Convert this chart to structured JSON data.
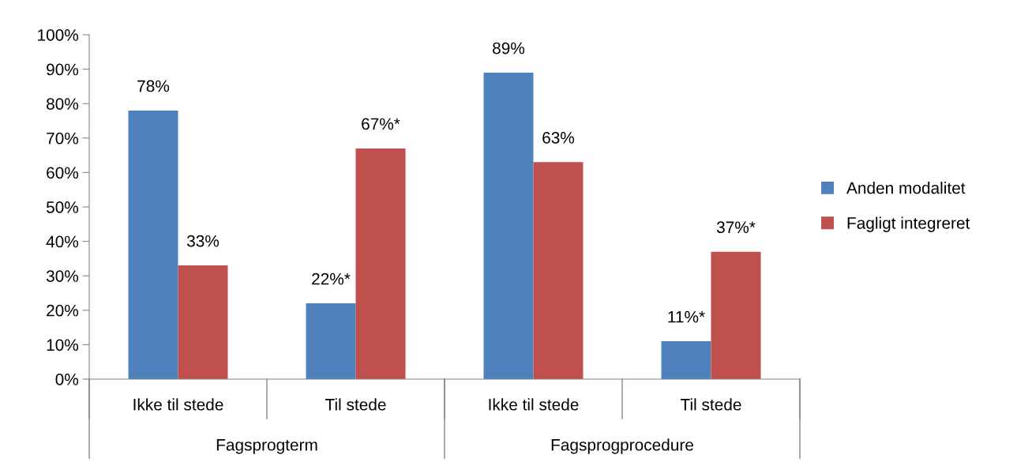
{
  "chart_data": {
    "type": "bar",
    "categories": [
      "Ikke til stede",
      "Til stede",
      "Ikke til stede",
      "Til stede"
    ],
    "series": [
      {
        "name": "Anden modalitet",
        "color": "#4f81bd",
        "values": [
          78,
          22,
          89,
          11
        ],
        "value_labels": [
          "78%",
          "22%*",
          "89%",
          "11%*"
        ]
      },
      {
        "name": "Fagligt integreret",
        "color": "#c0504d",
        "values": [
          33,
          67,
          63,
          37
        ],
        "value_labels": [
          "33%",
          "67%*",
          "63%",
          "37%*"
        ]
      }
    ],
    "annotations": [
      "Fagsprogterm",
      "Fagsprogprocedure"
    ],
    "ylim": [
      0,
      100
    ],
    "yticks": [
      {
        "value": 0,
        "label": "0%"
      },
      {
        "value": 10,
        "label": "10%"
      },
      {
        "value": 20,
        "label": "20%"
      },
      {
        "value": 30,
        "label": "30%"
      },
      {
        "value": 40,
        "label": "40%"
      },
      {
        "value": 50,
        "label": "50%"
      },
      {
        "value": 60,
        "label": "60%"
      },
      {
        "value": 70,
        "label": "70%"
      },
      {
        "value": 80,
        "label": "80%"
      },
      {
        "value": 90,
        "label": "90%"
      },
      {
        "value": 100,
        "label": "100%"
      }
    ],
    "grid": false,
    "legend": "right"
  }
}
